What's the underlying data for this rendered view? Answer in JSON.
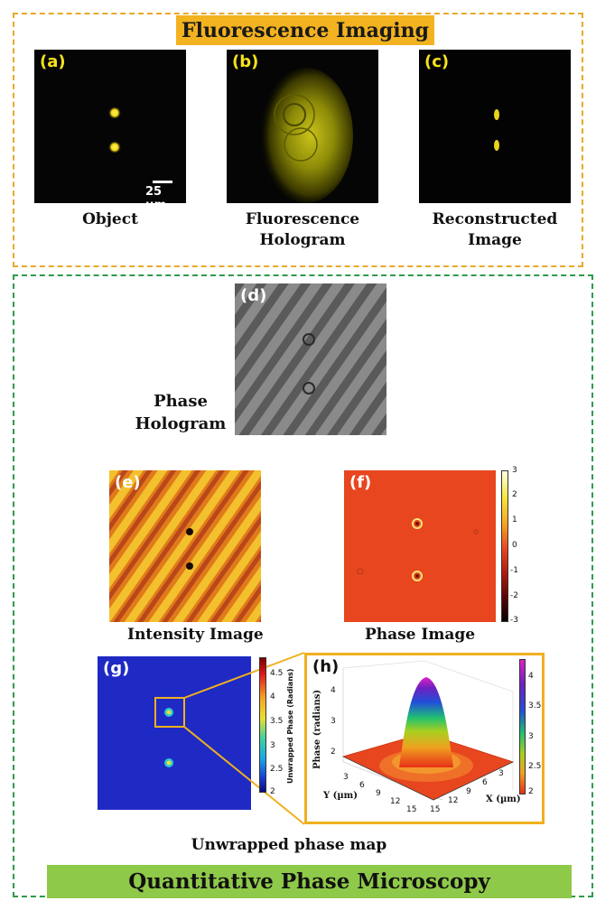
{
  "fluorescence_section": {
    "title": "Fluorescence Imaging",
    "panels": [
      {
        "label": "(a)",
        "caption": "Object",
        "scale_bar": "25 µm"
      },
      {
        "label": "(b)",
        "caption_line1": "Fluorescence",
        "caption_line2": "Hologram"
      },
      {
        "label": "(c)",
        "caption_line1": "Reconstructed",
        "caption_line2": "Image"
      }
    ]
  },
  "phase_section": {
    "title": "Quantitative Phase Microscopy",
    "panel_d": {
      "label": "(d)",
      "caption_line1": "Phase",
      "caption_line2": "Hologram"
    },
    "panel_e": {
      "label": "(e)",
      "caption": "Intensity Image"
    },
    "panel_f": {
      "label": "(f)",
      "caption": "Phase Image",
      "colorbar_ticks": [
        "3",
        "2",
        "1",
        "0",
        "-1",
        "-2",
        "-3"
      ]
    },
    "panel_g": {
      "label": "(g)",
      "colorbar_title": "Unwrapped Phase (Radians)",
      "colorbar_ticks": [
        "4.5",
        "4",
        "3.5",
        "3",
        "2.5",
        "2"
      ]
    },
    "panel_h": {
      "label": "(h)",
      "z_label": "Phase (radians)",
      "z_ticks": [
        "4",
        "3",
        "2"
      ],
      "y_label": "Y (µm)",
      "y_ticks": [
        "3",
        "6",
        "9",
        "12",
        "15"
      ],
      "x_label": "X (µm)",
      "x_ticks": [
        "3",
        "6",
        "9",
        "12",
        "15"
      ],
      "colorbar_ticks": [
        "4",
        "3.5",
        "3",
        "2.5",
        "2"
      ]
    },
    "bottom_caption": "Unwrapped phase map"
  },
  "colors": {
    "fluorescence_accent": "#f3b21f",
    "qpm_accent": "#8fc949",
    "fluorescence_border": "#e8a92a",
    "qpm_border": "#2f9a4c"
  }
}
